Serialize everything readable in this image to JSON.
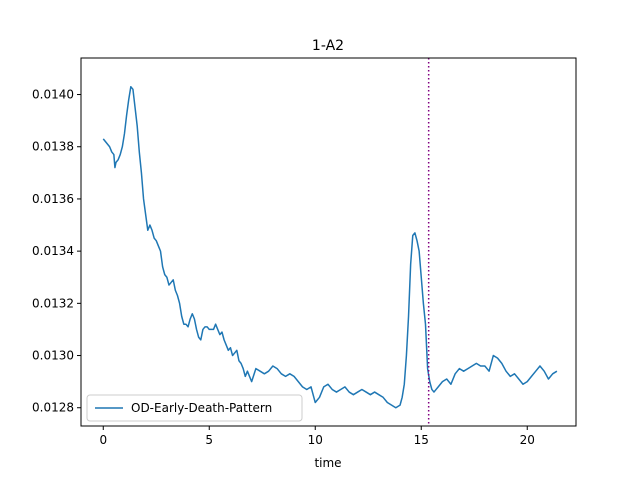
{
  "chart_data": {
    "type": "line",
    "title": "1-A2",
    "xlabel": "time",
    "ylabel": "",
    "xlim": [
      -1.05,
      22.3
    ],
    "ylim": [
      0.01273,
      0.01414
    ],
    "x_ticks": [
      0,
      5,
      10,
      15,
      20
    ],
    "y_ticks": [
      0.0128,
      0.013,
      0.0132,
      0.0134,
      0.0136,
      0.0138,
      0.014
    ],
    "y_tick_labels": [
      "0.0128",
      "0.0130",
      "0.0132",
      "0.0134",
      "0.0136",
      "0.0138",
      "0.0140"
    ],
    "grid": false,
    "legend_position": "lower-left",
    "vline": {
      "x": 15.35,
      "color": "#800080",
      "style": "dotted"
    },
    "series": [
      {
        "name": "OD-Early-Death-Pattern",
        "color": "#1f77b4",
        "x": [
          0.0,
          0.1,
          0.2,
          0.3,
          0.4,
          0.5,
          0.55,
          0.6,
          0.7,
          0.8,
          0.9,
          1.0,
          1.1,
          1.2,
          1.3,
          1.4,
          1.5,
          1.6,
          1.7,
          1.8,
          1.9,
          2.0,
          2.1,
          2.2,
          2.3,
          2.4,
          2.5,
          2.6,
          2.7,
          2.8,
          2.9,
          3.0,
          3.1,
          3.2,
          3.3,
          3.4,
          3.5,
          3.6,
          3.7,
          3.8,
          3.9,
          4.0,
          4.1,
          4.2,
          4.3,
          4.4,
          4.5,
          4.6,
          4.7,
          4.8,
          4.9,
          5.0,
          5.1,
          5.2,
          5.3,
          5.4,
          5.5,
          5.6,
          5.7,
          5.8,
          5.9,
          6.0,
          6.1,
          6.2,
          6.3,
          6.4,
          6.5,
          6.6,
          6.7,
          6.8,
          6.9,
          7.0,
          7.2,
          7.4,
          7.6,
          7.8,
          8.0,
          8.2,
          8.4,
          8.6,
          8.8,
          9.0,
          9.2,
          9.4,
          9.6,
          9.8,
          10.0,
          10.2,
          10.4,
          10.6,
          10.8,
          11.0,
          11.2,
          11.4,
          11.6,
          11.8,
          12.0,
          12.2,
          12.4,
          12.6,
          12.8,
          13.0,
          13.2,
          13.4,
          13.6,
          13.8,
          14.0,
          14.1,
          14.2,
          14.3,
          14.4,
          14.5,
          14.6,
          14.7,
          14.8,
          14.9,
          15.0,
          15.1,
          15.2,
          15.3,
          15.4,
          15.5,
          15.6,
          15.7,
          15.8,
          16.0,
          16.2,
          16.4,
          16.6,
          16.8,
          17.0,
          17.2,
          17.4,
          17.6,
          17.8,
          18.0,
          18.2,
          18.4,
          18.6,
          18.8,
          19.0,
          19.2,
          19.4,
          19.6,
          19.8,
          20.0,
          20.2,
          20.4,
          20.6,
          20.8,
          21.0,
          21.2,
          21.4
        ],
        "y": [
          0.01383,
          0.01382,
          0.01381,
          0.0138,
          0.01378,
          0.01377,
          0.01372,
          0.01374,
          0.01375,
          0.01377,
          0.0138,
          0.01385,
          0.01392,
          0.01398,
          0.01403,
          0.01402,
          0.01395,
          0.01388,
          0.01378,
          0.0137,
          0.0136,
          0.01354,
          0.01348,
          0.0135,
          0.01348,
          0.01345,
          0.01344,
          0.01342,
          0.0134,
          0.01334,
          0.01331,
          0.0133,
          0.01327,
          0.01328,
          0.01329,
          0.01325,
          0.01323,
          0.0132,
          0.01315,
          0.01312,
          0.01312,
          0.01311,
          0.01314,
          0.01316,
          0.01314,
          0.0131,
          0.01307,
          0.01306,
          0.0131,
          0.01311,
          0.01311,
          0.0131,
          0.0131,
          0.0131,
          0.01312,
          0.0131,
          0.01308,
          0.01309,
          0.01306,
          0.01304,
          0.01302,
          0.01303,
          0.013,
          0.01301,
          0.01302,
          0.01298,
          0.01297,
          0.01295,
          0.01292,
          0.01294,
          0.01292,
          0.0129,
          0.01295,
          0.01294,
          0.01293,
          0.01294,
          0.01296,
          0.01295,
          0.01293,
          0.01292,
          0.01293,
          0.01292,
          0.0129,
          0.01288,
          0.01287,
          0.01288,
          0.01282,
          0.01284,
          0.01288,
          0.01289,
          0.01287,
          0.01286,
          0.01287,
          0.01288,
          0.01286,
          0.01285,
          0.01286,
          0.01287,
          0.01286,
          0.01285,
          0.01286,
          0.01285,
          0.01284,
          0.01282,
          0.01281,
          0.0128,
          0.01281,
          0.01284,
          0.01289,
          0.013,
          0.01315,
          0.01335,
          0.01346,
          0.01347,
          0.01344,
          0.0134,
          0.0133,
          0.0132,
          0.01312,
          0.01295,
          0.0129,
          0.01287,
          0.01286,
          0.01287,
          0.01288,
          0.0129,
          0.01291,
          0.01289,
          0.01293,
          0.01295,
          0.01294,
          0.01295,
          0.01296,
          0.01297,
          0.01296,
          0.01296,
          0.01294,
          0.013,
          0.01299,
          0.01297,
          0.01294,
          0.01292,
          0.01293,
          0.01291,
          0.01289,
          0.0129,
          0.01292,
          0.01294,
          0.01296,
          0.01294,
          0.01291,
          0.01293,
          0.01294
        ]
      }
    ]
  }
}
